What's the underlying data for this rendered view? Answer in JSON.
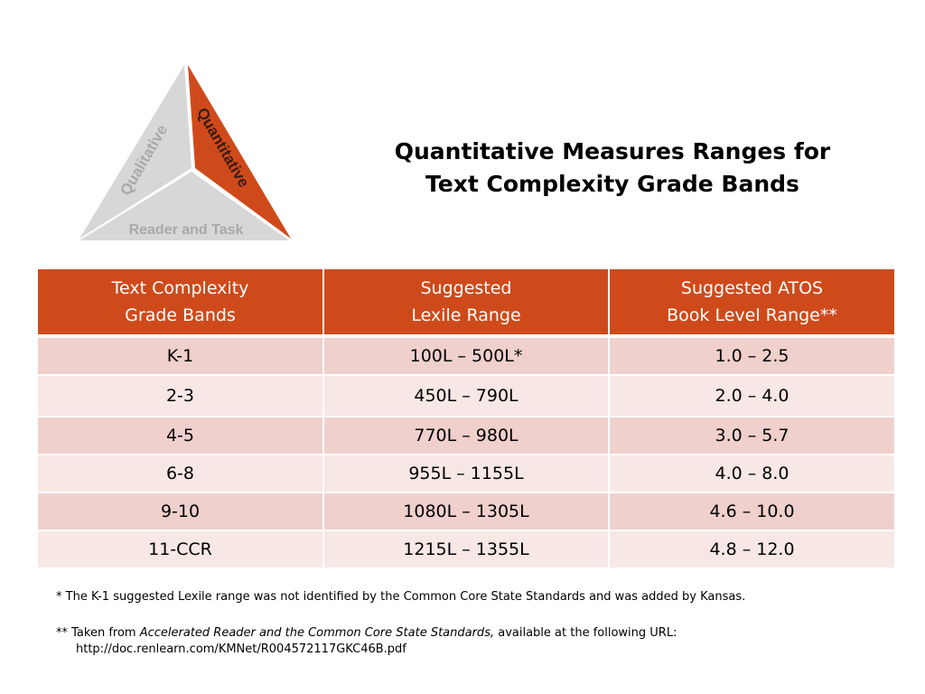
{
  "logo": {
    "left_label": "Qualitative",
    "right_label": "Quantitative",
    "bottom_label": "Reader and Task",
    "colors": {
      "accent": "#cf4a1b",
      "grey": "#d7d7d7",
      "grey_text": "#a9a9a9"
    }
  },
  "title": {
    "line1": "Quantitative Measures Ranges for",
    "line2": "Text Complexity Grade Bands"
  },
  "table": {
    "headers": [
      {
        "line1": "Text Complexity",
        "line2": "Grade Bands"
      },
      {
        "line1": "Suggested",
        "line2": "Lexile Range"
      },
      {
        "line1": "Suggested ATOS",
        "line2": "Book Level Range**"
      }
    ],
    "rows": [
      [
        "K-1",
        "100L – 500L*",
        "1.0 – 2.5"
      ],
      [
        "2-3",
        "450L – 790L",
        "2.0 – 4.0"
      ],
      [
        "4-5",
        "770L – 980L",
        "3.0 – 5.7"
      ],
      [
        "6-8",
        "955L – 1155L",
        "4.0 – 8.0"
      ],
      [
        "9-10",
        "1080L – 1305L",
        "4.6 – 10.0"
      ],
      [
        "11-CCR",
        "1215L – 1355L",
        "4.8 – 12.0"
      ]
    ],
    "colors": {
      "header_bg": "#cf4a1b",
      "row_odd": "#efd0cc",
      "row_even": "#f7e8e6"
    }
  },
  "footnotes": {
    "note1": "* The K-1 suggested Lexile range was not identified by the Common Core State Standards and was added by Kansas.",
    "note2_prefix": "** Taken from ",
    "note2_italic": "Accelerated Reader and the Common Core State Standards,",
    "note2_suffix": " available at the following URL:",
    "note2_url": "http://doc.renlearn.com/KMNet/R004572117GKC46B.pdf"
  }
}
